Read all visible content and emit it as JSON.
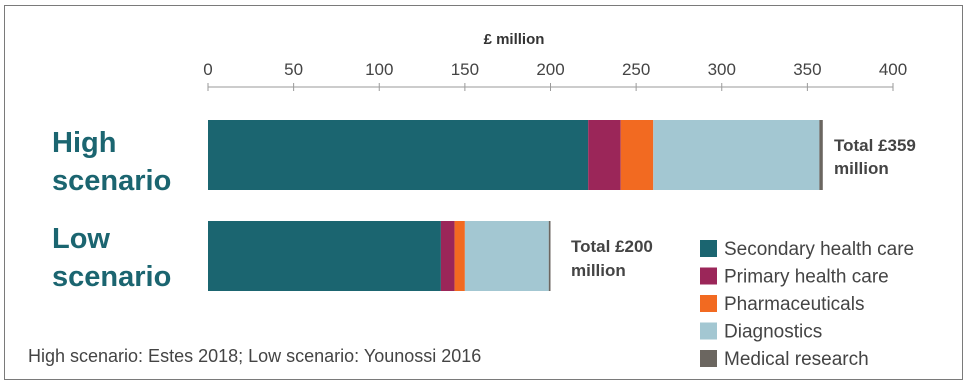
{
  "chart_data": {
    "type": "bar",
    "orientation": "horizontal",
    "stacked": true,
    "axis_title": "£ million",
    "xlim": [
      0,
      400
    ],
    "ticks": [
      "0",
      "50",
      "100",
      "150",
      "200",
      "250",
      "300",
      "350",
      "400"
    ],
    "tick_values": [
      0,
      50,
      100,
      150,
      200,
      250,
      300,
      350,
      400
    ],
    "categories": [
      {
        "label_line1": "High",
        "label_line2": "scenario",
        "total_line1": "Total £359",
        "total_line2": "million",
        "total": 359
      },
      {
        "label_line1": "Low",
        "label_line2": "scenario",
        "total_line1": "Total £200",
        "total_line2": "million",
        "total": 200
      }
    ],
    "series": [
      {
        "name": "Secondary health care",
        "color": "#1b6570",
        "values": [
          222,
          136
        ]
      },
      {
        "name": "Primary health care",
        "color": "#9b2659",
        "values": [
          19,
          8
        ]
      },
      {
        "name": "Pharmaceuticals",
        "color": "#f26a21",
        "values": [
          19,
          6
        ]
      },
      {
        "name": "Diagnostics",
        "color": "#a3c7d2",
        "values": [
          97,
          49
        ]
      },
      {
        "name": "Medical research",
        "color": "#6b6660",
        "values": [
          2,
          1
        ]
      }
    ],
    "legend_position": "bottom-right",
    "grid": false
  },
  "source_note": "High scenario: Estes 2018; Low scenario: Younossi 2016"
}
